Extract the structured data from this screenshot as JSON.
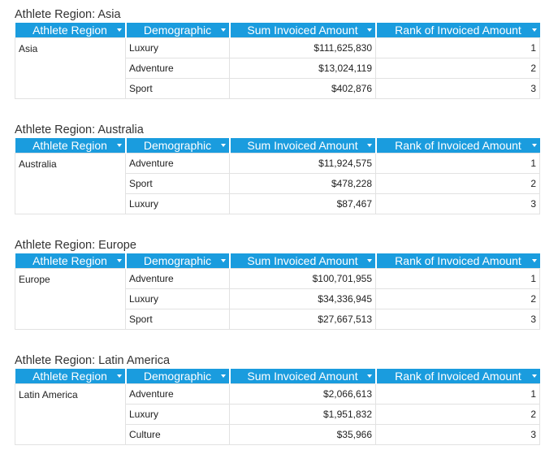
{
  "columns": {
    "athlete_region": "Athlete Region",
    "demographic": "Demographic",
    "sum_invoiced": "Sum Invoiced Amount",
    "rank_invoiced": "Rank of Invoiced Amount"
  },
  "sections": [
    {
      "title": "Athlete Region: Asia",
      "region": "Asia",
      "rows": [
        {
          "demographic": "Luxury",
          "amount": "$111,625,830",
          "rank": "1"
        },
        {
          "demographic": "Adventure",
          "amount": "$13,024,119",
          "rank": "2"
        },
        {
          "demographic": "Sport",
          "amount": "$402,876",
          "rank": "3"
        }
      ]
    },
    {
      "title": "Athlete Region: Australia",
      "region": "Australia",
      "rows": [
        {
          "demographic": "Adventure",
          "amount": "$11,924,575",
          "rank": "1"
        },
        {
          "demographic": "Sport",
          "amount": "$478,228",
          "rank": "2"
        },
        {
          "demographic": "Luxury",
          "amount": "$87,467",
          "rank": "3"
        }
      ]
    },
    {
      "title": "Athlete Region: Europe",
      "region": "Europe",
      "rows": [
        {
          "demographic": "Adventure",
          "amount": "$100,701,955",
          "rank": "1"
        },
        {
          "demographic": "Luxury",
          "amount": "$34,336,945",
          "rank": "2"
        },
        {
          "demographic": "Sport",
          "amount": "$27,667,513",
          "rank": "3"
        }
      ]
    },
    {
      "title": "Athlete Region: Latin America",
      "region": "Latin America",
      "rows": [
        {
          "demographic": "Adventure",
          "amount": "$2,066,613",
          "rank": "1"
        },
        {
          "demographic": "Luxury",
          "amount": "$1,951,832",
          "rank": "2"
        },
        {
          "demographic": "Culture",
          "amount": "$35,966",
          "rank": "3"
        }
      ]
    }
  ],
  "colors": {
    "header_bg": "#1a9cde",
    "header_text": "#ffffff",
    "grid_border": "#e2e2e2"
  },
  "icons": {
    "sort": "chevron-down-icon"
  }
}
